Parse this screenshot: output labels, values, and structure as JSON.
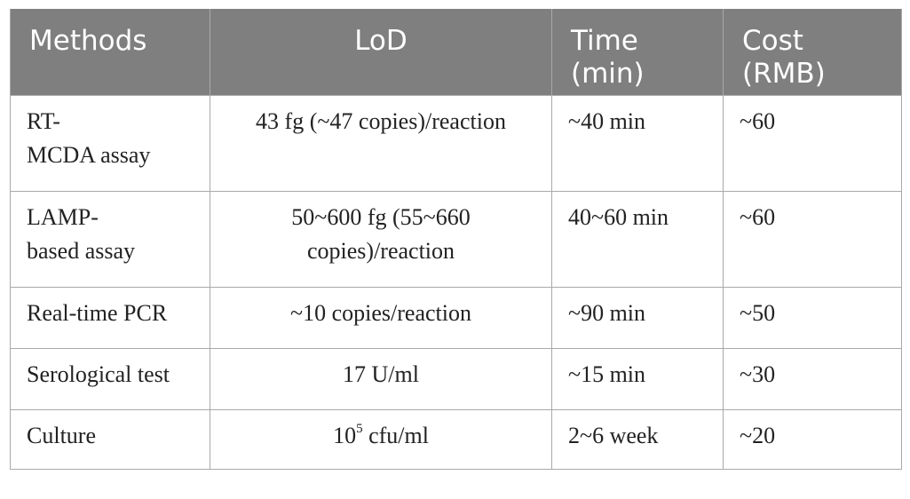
{
  "table": {
    "headers": {
      "methods": "Methods",
      "lod": "LoD",
      "time_line1": "Time",
      "time_line2": "(min)",
      "cost_line1": "Cost",
      "cost_line2": "(RMB)"
    },
    "rows": [
      {
        "method_line1": "RT-",
        "method_line2": "MCDA assay",
        "lod_line1": "43 fg (~47 copies)/reaction",
        "time": "~40 min",
        "cost": "~60"
      },
      {
        "method_line1": "LAMP-",
        "method_line2": "based assay",
        "lod_line1": "50~600 fg (55~660",
        "lod_line2": "copies)/reaction",
        "time": "40~60 min",
        "cost": "~60"
      },
      {
        "method": "Real-time PCR",
        "lod": "~10 copies/reaction",
        "time": "~90 min",
        "cost": "~50"
      },
      {
        "method": "Serological test",
        "lod": "17 U/ml",
        "time": "~15 min",
        "cost": "~30"
      },
      {
        "method": "Culture",
        "lod_base": "10",
        "lod_exp": "5",
        "lod_unit": " cfu/ml",
        "time": "2~6 week",
        "cost": "~20"
      }
    ]
  }
}
